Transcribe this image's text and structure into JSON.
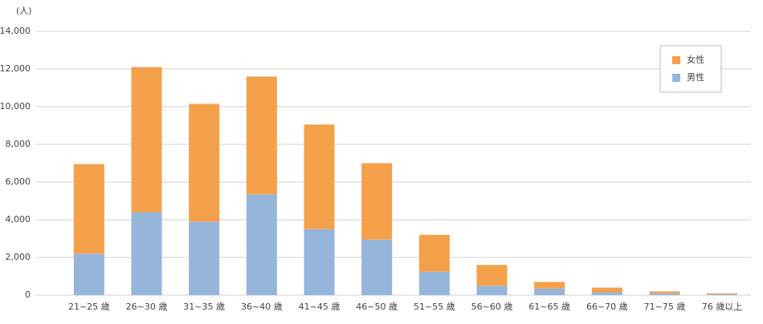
{
  "chart_data": {
    "type": "stacked_bar",
    "y_unit": "(人)",
    "categories": [
      "21~25 歳",
      "26~30 歳",
      "31~35 歳",
      "36~40 歳",
      "41~45 歳",
      "46~50 歳",
      "51~55 歳",
      "56~60 歳",
      "61~65 歳",
      "66~70 歳",
      "71~75 歳",
      "76 歳以上"
    ],
    "series": [
      {
        "name": "男性",
        "color": "#95b5db",
        "values": [
          2200,
          4400,
          3900,
          5350,
          3500,
          2950,
          1250,
          500,
          350,
          150,
          100,
          50
        ]
      },
      {
        "name": "女性",
        "color": "#f5a04a",
        "values": [
          4750,
          7700,
          6250,
          6250,
          5550,
          4050,
          1950,
          1100,
          350,
          250,
          100,
          50
        ]
      }
    ],
    "ylim": [
      0,
      14000
    ],
    "yticks": [
      0,
      {
        "value": 2000,
        "label": "2,000"
      },
      {
        "value": 4000,
        "label": "4,000"
      },
      {
        "value": 6000,
        "label": "6,000"
      },
      {
        "value": 8000,
        "label": "8,000"
      },
      {
        "value": 10000,
        "label": "10,000"
      },
      {
        "value": 12000,
        "label": "12,000"
      },
      {
        "value": 14000,
        "label": "14,000"
      }
    ],
    "grid": true,
    "legend": "top-right"
  }
}
